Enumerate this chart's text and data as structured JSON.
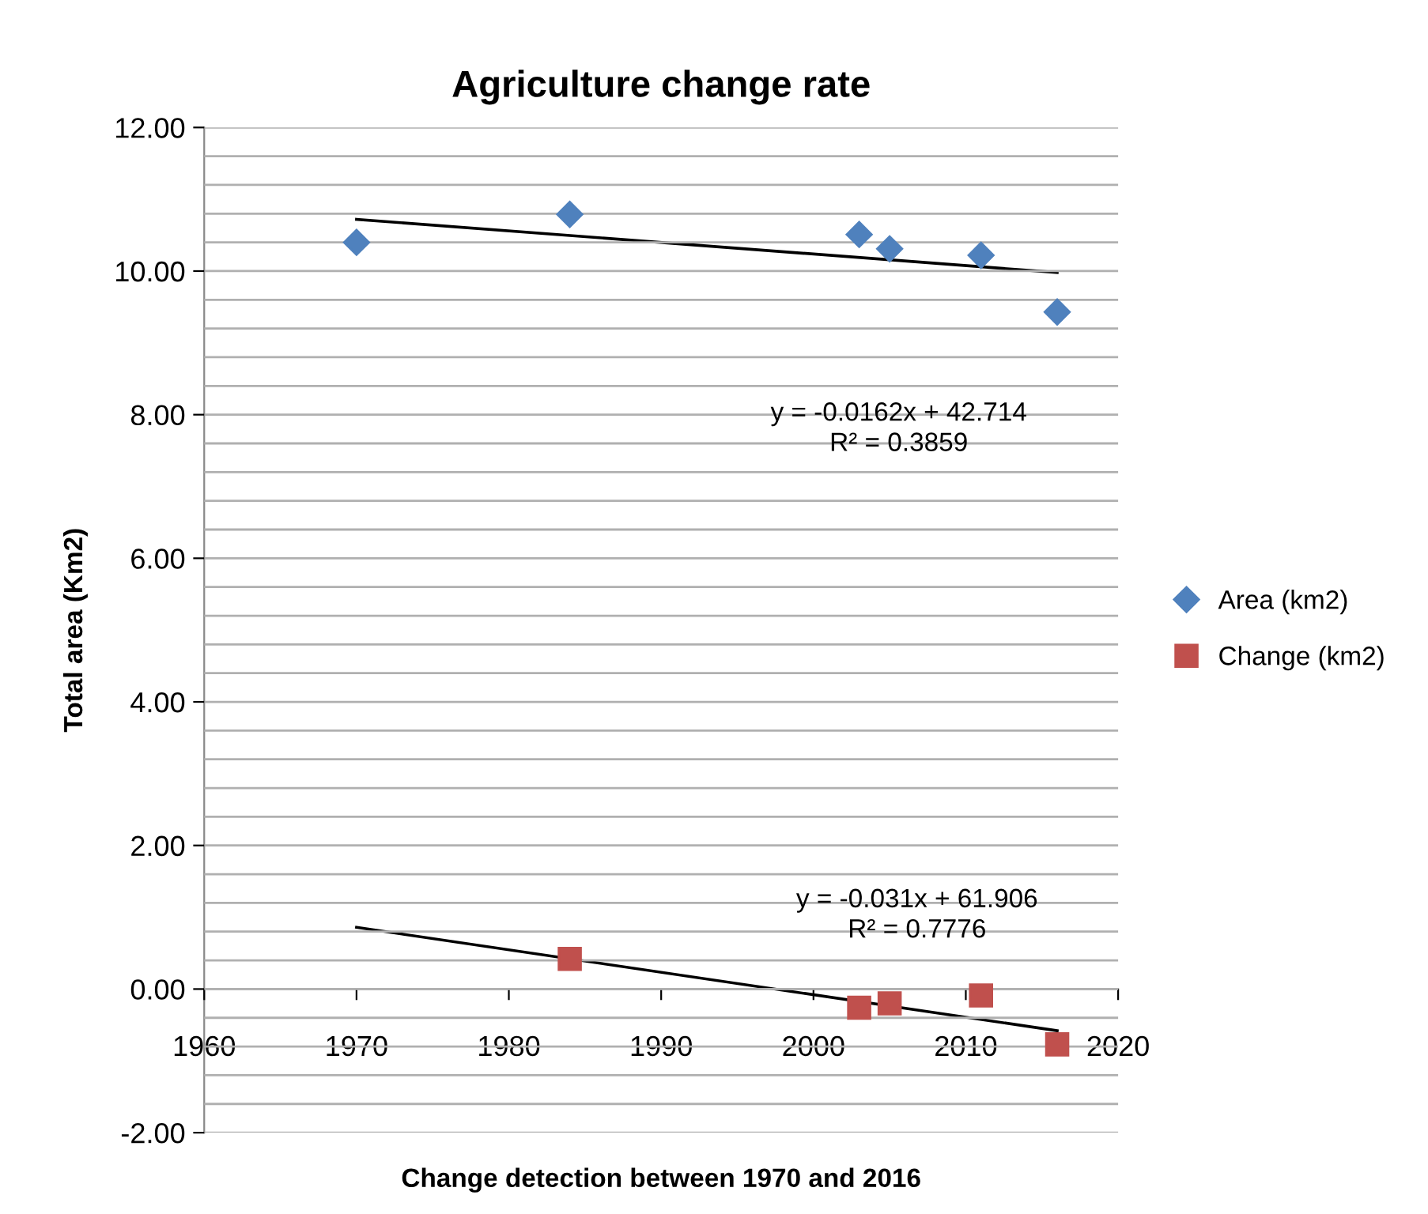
{
  "chart_data": {
    "type": "scatter",
    "title": "Agriculture change rate",
    "xlabel": "Change detection between 1970 and 2016",
    "ylabel": "Total area (Km2)",
    "series": [
      {
        "name": "Area (km2)",
        "color": "#4f81bd",
        "marker": "diamond",
        "x": [
          1970,
          1984,
          2003,
          2005,
          2011,
          2016
        ],
        "values": [
          10.4,
          10.79,
          10.51,
          10.31,
          10.22,
          9.43
        ]
      },
      {
        "name": "Change (km2)",
        "color": "#c0504d",
        "marker": "square",
        "x": [
          1984,
          2003,
          2005,
          2011,
          2016
        ],
        "values": [
          0.42,
          -0.26,
          -0.2,
          -0.09,
          -0.77
        ]
      },
      {
        "type": "line",
        "color": "#000000",
        "x": [
          1970,
          2016
        ],
        "values": [
          10.72,
          9.98
        ]
      },
      {
        "type": "line",
        "color": "#000000",
        "x": [
          1970,
          2016
        ],
        "values": [
          0.86,
          -0.58
        ]
      }
    ],
    "annotations": [
      "y = -0.0162x + 42.714\nR² = 0.3859",
      "y = -0.031x + 61.906\nR² = 0.7776"
    ],
    "xlim": [
      1960,
      2020
    ],
    "xticks": [
      1960,
      1970,
      1980,
      1990,
      2000,
      2010,
      2020
    ],
    "ylim": [
      -2,
      12
    ],
    "yticks": [
      {
        "value": -2,
        "label": "-2.00"
      },
      {
        "value": -1.6,
        "label": null
      },
      {
        "value": -1.2,
        "label": null
      },
      {
        "value": -0.8,
        "label": null
      },
      {
        "value": -0.4,
        "label": null
      },
      {
        "value": 0,
        "label": "0.00"
      },
      {
        "value": 0.4,
        "label": null
      },
      {
        "value": 0.8,
        "label": null
      },
      {
        "value": 1.2,
        "label": null
      },
      {
        "value": 1.6,
        "label": null
      },
      {
        "value": 2,
        "label": "2.00"
      },
      {
        "value": 2.4,
        "label": null
      },
      {
        "value": 2.8,
        "label": null
      },
      {
        "value": 3.2,
        "label": null
      },
      {
        "value": 3.6,
        "label": null
      },
      {
        "value": 4,
        "label": "4.00"
      },
      {
        "value": 4.4,
        "label": null
      },
      {
        "value": 4.8,
        "label": null
      },
      {
        "value": 5.2,
        "label": null
      },
      {
        "value": 5.6,
        "label": null
      },
      {
        "value": 6,
        "label": "6.00"
      },
      {
        "value": 6.4,
        "label": null
      },
      {
        "value": 6.8,
        "label": null
      },
      {
        "value": 7.2,
        "label": null
      },
      {
        "value": 7.6,
        "label": null
      },
      {
        "value": 8,
        "label": "8.00"
      },
      {
        "value": 8.4,
        "label": null
      },
      {
        "value": 8.8,
        "label": null
      },
      {
        "value": 9.2,
        "label": null
      },
      {
        "value": 9.6,
        "label": null
      },
      {
        "value": 10,
        "label": "10.00"
      },
      {
        "value": 10.4,
        "label": null
      },
      {
        "value": 10.8,
        "label": null
      },
      {
        "value": 11.2,
        "label": null
      },
      {
        "value": 11.6,
        "label": null
      },
      {
        "value": 12,
        "label": "12.00"
      }
    ],
    "grid": "y",
    "legend": "right"
  }
}
